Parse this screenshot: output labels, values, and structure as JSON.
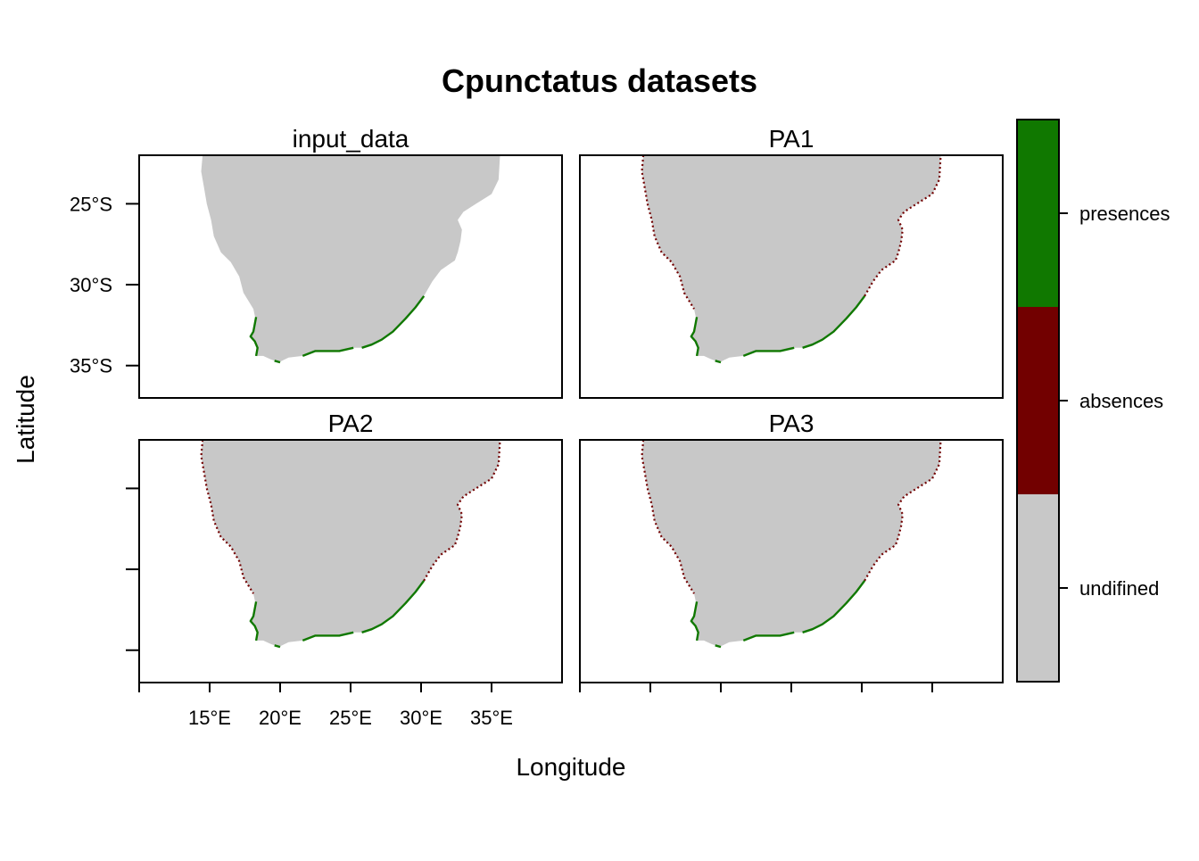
{
  "title": "Cpunctatus datasets",
  "x_axis_label": "Longitude",
  "y_axis_label": "Latitude",
  "colors": {
    "undefined": "#c8c8c8",
    "absences": "#720000",
    "presences": "#107800",
    "background": "#ffffff",
    "frame": "#000000"
  },
  "chart_data": {
    "type": "raster-map",
    "lon_range": [
      10,
      40
    ],
    "lat_range": [
      -37,
      -22
    ],
    "x_ticks": [
      15,
      20,
      25,
      30,
      35
    ],
    "x_tick_labels": [
      "15°E",
      "20°E",
      "25°E",
      "30°E",
      "35°E"
    ],
    "y_ticks": [
      -25,
      -30,
      -35
    ],
    "y_tick_labels": [
      "25°S",
      "30°S",
      "35°S"
    ],
    "panels": [
      {
        "name": "input_data",
        "has_absences": false
      },
      {
        "name": "PA1",
        "has_absences": true
      },
      {
        "name": "PA2",
        "has_absences": true
      },
      {
        "name": "PA3",
        "has_absences": true
      }
    ],
    "legend": {
      "position": "right",
      "categories": [
        "undifined",
        "absences",
        "presences"
      ]
    },
    "coastline": [
      [
        14.5,
        -22.0
      ],
      [
        14.4,
        -23.0
      ],
      [
        14.6,
        -24.0
      ],
      [
        14.8,
        -25.0
      ],
      [
        15.1,
        -26.0
      ],
      [
        15.3,
        -27.0
      ],
      [
        15.8,
        -28.0
      ],
      [
        16.5,
        -28.6
      ],
      [
        17.1,
        -29.5
      ],
      [
        17.4,
        -30.5
      ],
      [
        18.1,
        -31.5
      ],
      [
        18.3,
        -32.3
      ],
      [
        18.1,
        -32.9
      ],
      [
        17.9,
        -33.2
      ],
      [
        18.2,
        -33.5
      ],
      [
        18.4,
        -33.9
      ],
      [
        18.3,
        -34.4
      ],
      [
        18.8,
        -34.4
      ],
      [
        19.3,
        -34.6
      ],
      [
        19.9,
        -34.8
      ],
      [
        20.6,
        -34.5
      ],
      [
        21.6,
        -34.4
      ],
      [
        22.5,
        -34.1
      ],
      [
        23.5,
        -34.1
      ],
      [
        24.2,
        -34.1
      ],
      [
        25.2,
        -33.9
      ],
      [
        25.8,
        -33.9
      ],
      [
        26.5,
        -33.7
      ],
      [
        27.2,
        -33.4
      ],
      [
        28.0,
        -32.9
      ],
      [
        28.9,
        -32.1
      ],
      [
        29.6,
        -31.4
      ],
      [
        30.2,
        -30.7
      ],
      [
        30.8,
        -29.8
      ],
      [
        31.4,
        -29.1
      ],
      [
        31.9,
        -28.8
      ],
      [
        32.4,
        -28.5
      ],
      [
        32.6,
        -28.0
      ],
      [
        32.8,
        -27.3
      ],
      [
        32.9,
        -26.6
      ],
      [
        32.6,
        -26.0
      ],
      [
        33.0,
        -25.5
      ],
      [
        33.9,
        -25.0
      ],
      [
        35.0,
        -24.4
      ],
      [
        35.5,
        -23.5
      ],
      [
        35.6,
        -22.0
      ]
    ],
    "presence_segments": [
      [
        [
          18.3,
          -32.0
        ],
        [
          18.1,
          -32.9
        ],
        [
          17.9,
          -33.2
        ],
        [
          18.2,
          -33.5
        ],
        [
          18.4,
          -33.9
        ],
        [
          18.3,
          -34.4
        ]
      ],
      [
        [
          19.6,
          -34.7
        ],
        [
          20.0,
          -34.8
        ]
      ],
      [
        [
          21.6,
          -34.4
        ],
        [
          22.5,
          -34.1
        ],
        [
          23.5,
          -34.1
        ],
        [
          24.2,
          -34.1
        ],
        [
          25.2,
          -33.9
        ]
      ],
      [
        [
          25.8,
          -33.9
        ],
        [
          26.5,
          -33.7
        ],
        [
          27.2,
          -33.4
        ],
        [
          28.0,
          -32.9
        ],
        [
          28.9,
          -32.1
        ],
        [
          29.6,
          -31.4
        ],
        [
          30.2,
          -30.7
        ]
      ]
    ],
    "absence_segments": [
      [
        [
          14.5,
          -22.0
        ],
        [
          14.4,
          -23.0
        ],
        [
          14.6,
          -24.0
        ],
        [
          14.8,
          -25.0
        ],
        [
          15.1,
          -26.0
        ],
        [
          15.3,
          -27.0
        ],
        [
          15.8,
          -28.0
        ],
        [
          16.5,
          -28.6
        ],
        [
          17.1,
          -29.5
        ],
        [
          17.4,
          -30.5
        ],
        [
          18.1,
          -31.5
        ]
      ],
      [
        [
          30.2,
          -30.7
        ],
        [
          30.8,
          -29.8
        ],
        [
          31.4,
          -29.1
        ],
        [
          31.9,
          -28.8
        ],
        [
          32.4,
          -28.5
        ],
        [
          32.6,
          -28.0
        ],
        [
          32.8,
          -27.3
        ],
        [
          32.9,
          -26.6
        ],
        [
          32.6,
          -26.0
        ],
        [
          33.0,
          -25.5
        ],
        [
          33.9,
          -25.0
        ],
        [
          35.0,
          -24.4
        ],
        [
          35.5,
          -23.5
        ],
        [
          35.6,
          -22.0
        ]
      ]
    ]
  }
}
